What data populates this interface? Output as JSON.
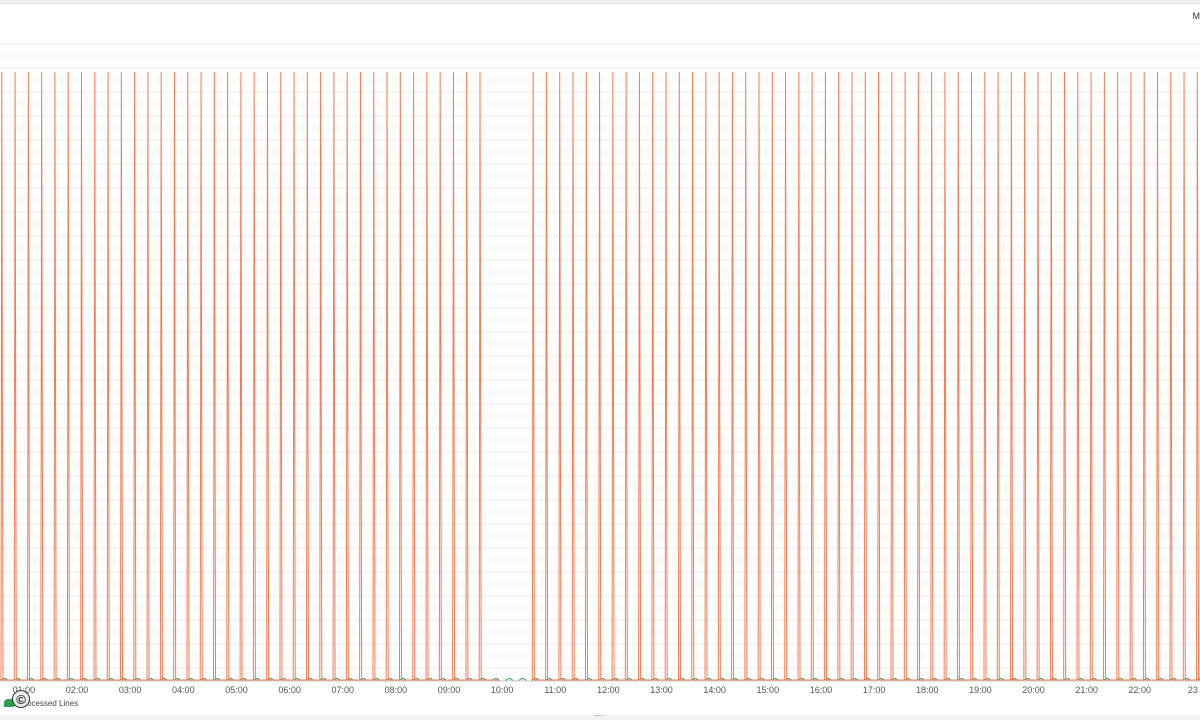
{
  "header": {
    "label": "M"
  },
  "legend": {
    "label": "Processed Lines",
    "copyright_symbol": "©"
  },
  "handle": {
    "glyph": "...."
  },
  "colors": {
    "primary_series": "#f47c53",
    "secondary_series": "#3ea362",
    "grid": "#ececec"
  },
  "chart_data": {
    "type": "line",
    "title": "",
    "xlabel": "",
    "ylabel": "",
    "x_ticks": [
      "01:00",
      "02:00",
      "03:00",
      "04:00",
      "05:00",
      "06:00",
      "07:00",
      "08:00",
      "09:00",
      "10:00",
      "11:00",
      "12:00",
      "13:00",
      "14:00",
      "15:00",
      "16:00",
      "17:00",
      "18:00",
      "19:00",
      "20:00",
      "21:00",
      "22:00",
      "23"
    ],
    "xlim": [
      "00:33",
      "23:08"
    ],
    "ylim": [
      0,
      100
    ],
    "y_ticks_visible": false,
    "grid": true,
    "legend": "bottom-left",
    "series": [
      {
        "pattern": "periodic spikes to ~100 from baseline 0",
        "spike_interval_minutes": 15,
        "spike_peak": 100,
        "baseline": 0,
        "segments": [
          {
            "first_spike": "00:35",
            "last_spike": "09:45"
          },
          {
            "first_spike": "10:35",
            "last_spike": "23:05"
          }
        ]
      },
      {
        "name": "Processed Lines",
        "pattern": "small periodic bumps near baseline",
        "bump_interval_minutes": 15,
        "bump_peak": 0.6,
        "baseline": 0
      }
    ]
  }
}
